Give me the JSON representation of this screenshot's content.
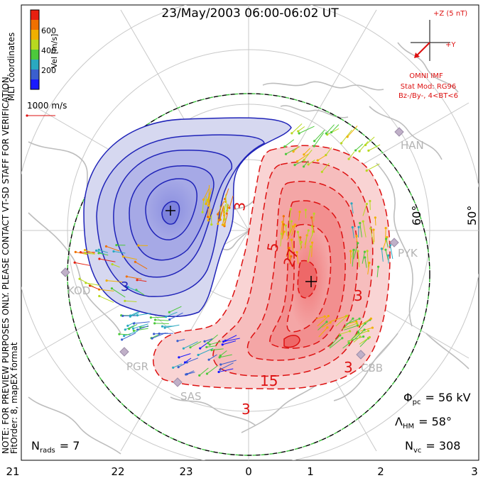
{
  "title": "23/May/2003 06:00-06:02 UT",
  "left_notes": {
    "coords": "MLT coordinates",
    "preview": "NOTE: FOR PREVIEW PURPOSES ONLY. PLEASE CONTACT VT-SD STAFF FOR VERIFICATION.",
    "fit": "FitOrder: 8, mapEX format"
  },
  "colorbar": {
    "label": "Vel [m/s]",
    "ticks": [
      "200",
      "400",
      "600"
    ],
    "colors": [
      "#1a1aff",
      "#3a5fcf",
      "#2aa9c0",
      "#4cc93c",
      "#b8d820",
      "#f0b000",
      "#f07000",
      "#e82010"
    ]
  },
  "velocity_scale": "1000 m/s",
  "imf": {
    "z_label": "+Z (5 nT)",
    "y_label": "+Y",
    "source": "OMNI IMF",
    "model": "Stat Mod: RG96",
    "condition": "Bz-/By-, 4<BT<6"
  },
  "stations": [
    "HAN",
    "PYK",
    "KOD",
    "PGR",
    "SAS",
    "CBB"
  ],
  "latitude_labels": [
    "60°",
    "50°"
  ],
  "mlt_ticks": [
    "21",
    "22",
    "23",
    "0",
    "1",
    "2",
    "3"
  ],
  "contour_labels": [
    "3",
    "3",
    "3",
    "3",
    "15",
    "5",
    "27"
  ],
  "stats": {
    "phi_pc": "= 56 kV",
    "lambda_hm": "= 58°",
    "n_vc": "= 308",
    "n_rads": "= 7"
  },
  "stat_symbols": {
    "phi": "Φ",
    "phi_sub": "pc",
    "lambda": "Λ",
    "lambda_sub": "HM",
    "n": "N",
    "n_vc_sub": "vc",
    "n_rads_sub": "rads"
  },
  "palette": {
    "positive_fill": "#f9d4d4",
    "negative_fill": "#d6d8f0",
    "positive_line": "#dd1111",
    "negative_line": "#1f23b8",
    "boundary": "#3cbf3c"
  }
}
